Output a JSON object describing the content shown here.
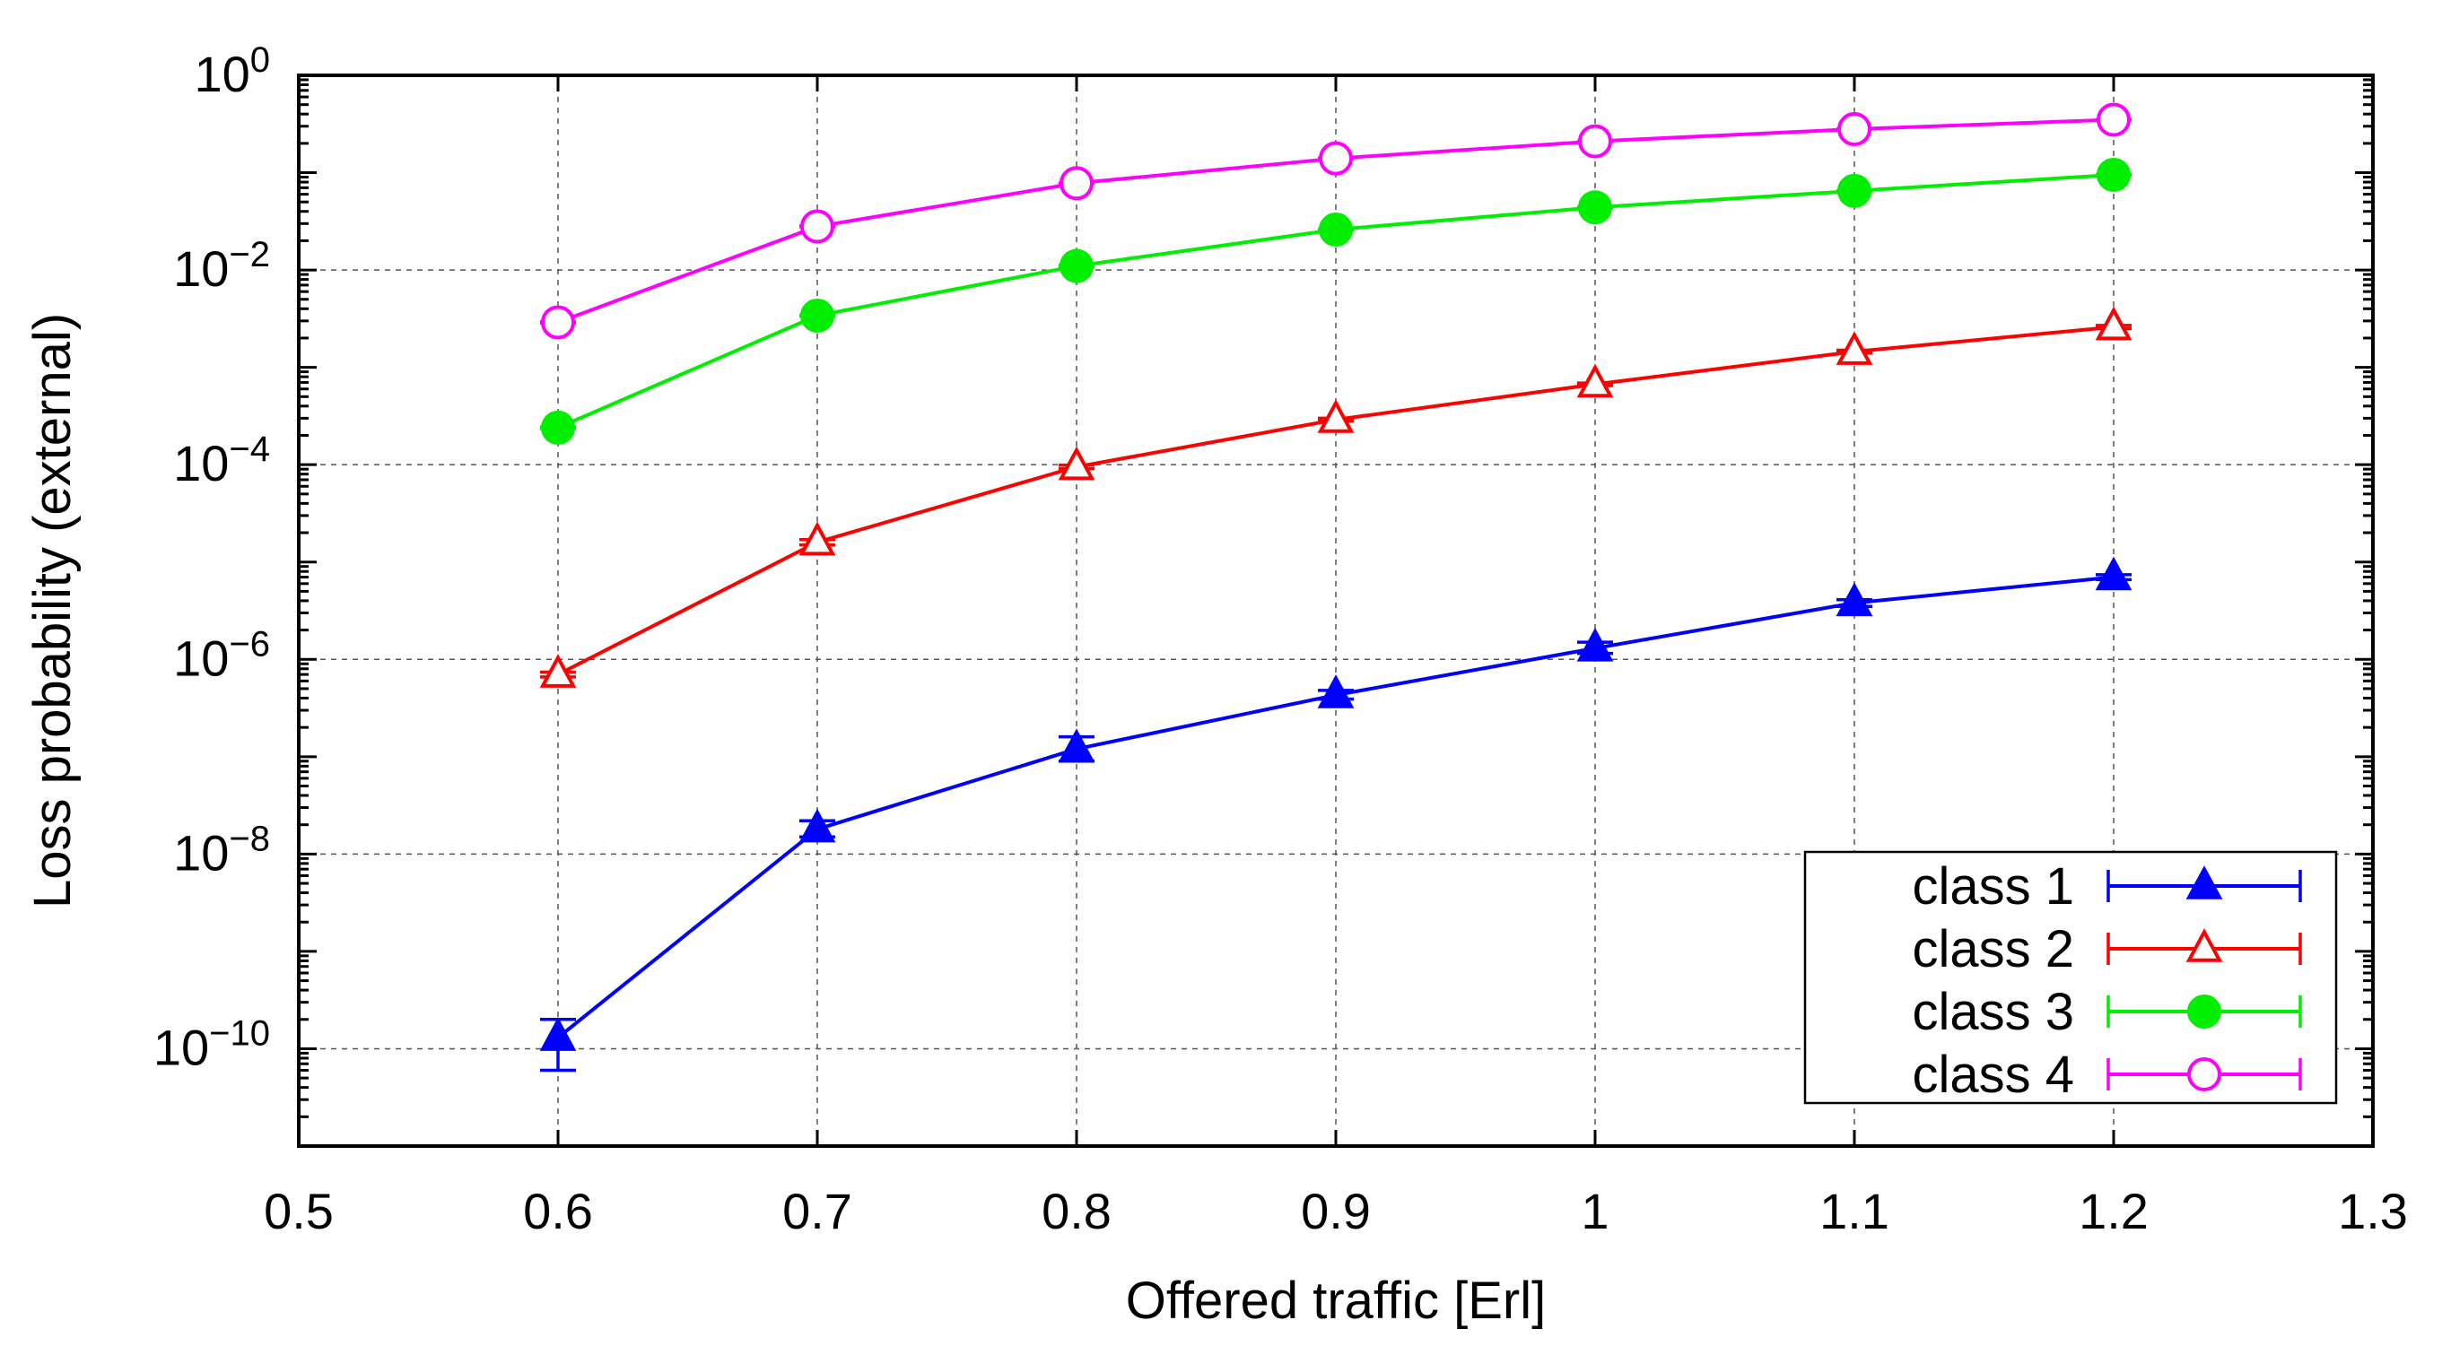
{
  "chart_data": {
    "type": "line",
    "xlabel": "Offered traffic [Erl]",
    "ylabel": "Loss probability (external)",
    "x": [
      0.6,
      0.7,
      0.8,
      0.9,
      1.0,
      1.1,
      1.2
    ],
    "xlim": [
      0.5,
      1.3
    ],
    "xticks": [
      {
        "value": 0.5,
        "label": "0.5"
      },
      {
        "value": 0.6,
        "label": "0.6"
      },
      {
        "value": 0.7,
        "label": "0.7"
      },
      {
        "value": 0.8,
        "label": "0.8"
      },
      {
        "value": 0.9,
        "label": "0.9"
      },
      {
        "value": 1.0,
        "label": "1"
      },
      {
        "value": 1.1,
        "label": "1.1"
      },
      {
        "value": 1.2,
        "label": "1.2"
      },
      {
        "value": 1.3,
        "label": "1.3"
      }
    ],
    "yscale": "log",
    "ylim": [
      1e-11,
      1
    ],
    "yticks": [
      {
        "exp": 0,
        "base": "10",
        "sup": "0"
      },
      {
        "exp": -2,
        "base": "10",
        "sup": "−2"
      },
      {
        "exp": -4,
        "base": "10",
        "sup": "−4"
      },
      {
        "exp": -6,
        "base": "10",
        "sup": "−6"
      },
      {
        "exp": -8,
        "base": "10",
        "sup": "−8"
      },
      {
        "exp": -10,
        "base": "10",
        "sup": "−10"
      }
    ],
    "grid": true,
    "legend_position": "bottom-right",
    "series": [
      {
        "name": "class 1",
        "color": "#0000ff",
        "marker": "triangle-filled",
        "values": [
          1.3e-10,
          1.8e-08,
          1.2e-07,
          4.3e-07,
          1.3e-06,
          3.8e-06,
          7e-06
        ],
        "err_low": [
          6e-11,
          1.5e-08,
          9e-08,
          3.9e-07,
          1.15e-06,
          3.5e-06,
          6.6e-06
        ],
        "err_high": [
          2e-10,
          2.2e-08,
          1.6e-07,
          4.8e-07,
          1.5e-06,
          4.1e-06,
          7.4e-06
        ]
      },
      {
        "name": "class 2",
        "color": "#ff0000",
        "marker": "triangle-open",
        "values": [
          7e-07,
          1.6e-05,
          9.5e-05,
          0.00029,
          0.00067,
          0.00145,
          0.0026
        ],
        "err_low": [
          6.6e-07,
          1.5e-05,
          9.1e-05,
          0.00028,
          0.00065,
          0.0014,
          0.0025
        ],
        "err_high": [
          7.4e-07,
          1.7e-05,
          9.9e-05,
          0.0003,
          0.00069,
          0.0015,
          0.0027
        ]
      },
      {
        "name": "class 3",
        "color": "#00ee00",
        "marker": "circle-filled",
        "values": [
          0.00024,
          0.0034,
          0.011,
          0.026,
          0.044,
          0.065,
          0.095
        ],
        "err_low": [
          0.000235,
          0.00335,
          0.0108,
          0.0257,
          0.0435,
          0.0645,
          0.094
        ],
        "err_high": [
          0.000245,
          0.00345,
          0.0112,
          0.0263,
          0.0445,
          0.0655,
          0.096
        ]
      },
      {
        "name": "class 4",
        "color": "#ff00ff",
        "marker": "circle-open",
        "values": [
          0.0029,
          0.028,
          0.078,
          0.14,
          0.21,
          0.28,
          0.35
        ],
        "err_low": [
          0.00285,
          0.0277,
          0.0775,
          0.139,
          0.209,
          0.279,
          0.349
        ],
        "err_high": [
          0.00295,
          0.0283,
          0.0785,
          0.141,
          0.211,
          0.281,
          0.351
        ]
      }
    ]
  }
}
